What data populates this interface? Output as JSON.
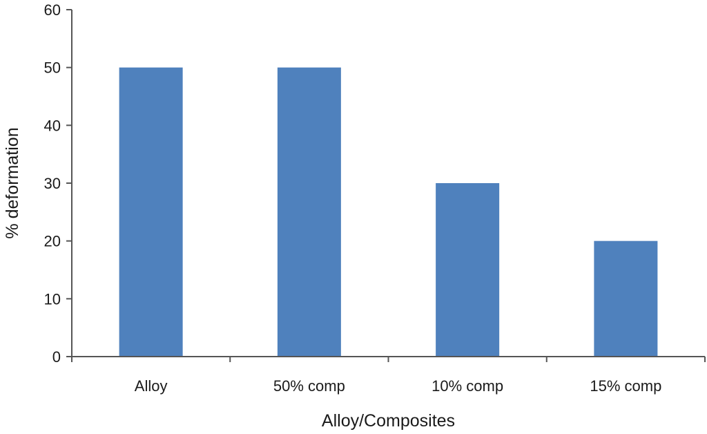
{
  "chart_data": {
    "type": "bar",
    "categories": [
      "Alloy",
      "50% comp",
      "10% comp",
      "15% comp"
    ],
    "values": [
      50,
      50,
      30,
      20
    ],
    "title": "",
    "xlabel": "Alloy/Composites",
    "ylabel": "% deformation",
    "ylim": [
      0,
      60
    ],
    "yticks": [
      0,
      10,
      20,
      30,
      40,
      50,
      60
    ],
    "grid": false,
    "legend": "none",
    "bar_color": "#4f81bd"
  }
}
